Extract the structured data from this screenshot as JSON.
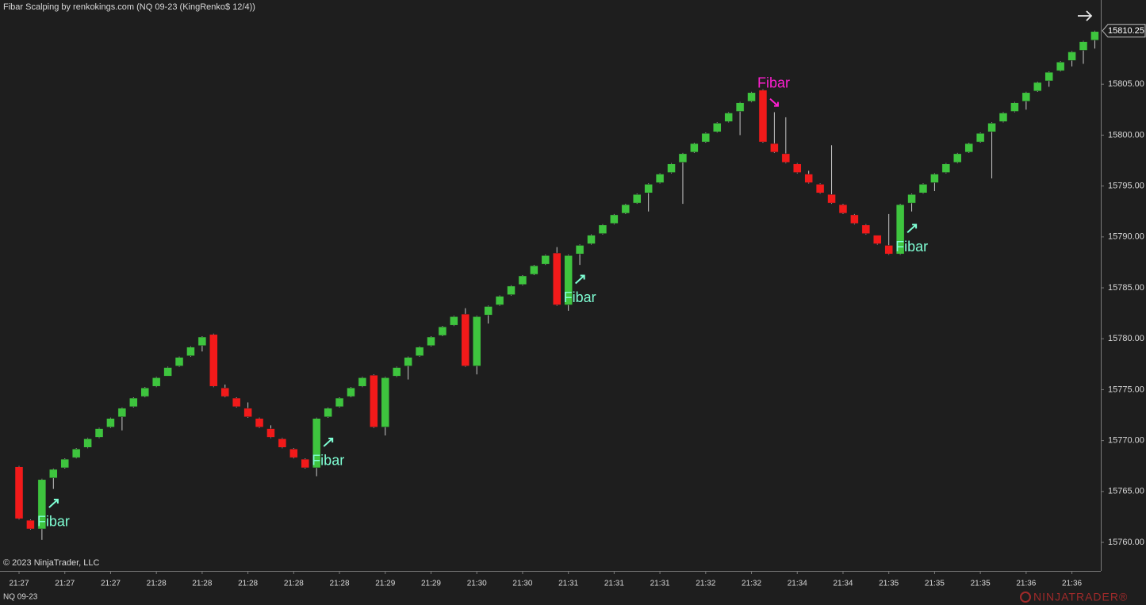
{
  "chart_data": {
    "type": "candlestick",
    "title": "Fibar Scalping by renkokings.com (NQ 09-23 (KingRenko$ 12/4))",
    "copyright": "© 2023 NinjaTrader, LLC",
    "instrument": "NQ 09-23",
    "brand": "NINJATRADER®",
    "up_color": "#3ec43e",
    "down_color": "#f21a1a",
    "categories": [
      "21:27",
      null,
      null,
      null,
      "21:27",
      null,
      null,
      null,
      "21:27",
      null,
      null,
      null,
      "21:28",
      null,
      null,
      null,
      "21:28",
      null,
      null,
      null,
      "21:28",
      null,
      null,
      null,
      "21:28",
      null,
      null,
      null,
      "21:28",
      null,
      null,
      null,
      "21:29",
      null,
      null,
      null,
      "21:29",
      null,
      null,
      null,
      "21:30",
      null,
      null,
      null,
      "21:30",
      null,
      null,
      null,
      "21:31",
      null,
      null,
      null,
      "21:31",
      null,
      null,
      null,
      "21:31",
      null,
      null,
      null,
      "21:32",
      null,
      null,
      null,
      "21:32",
      null,
      null,
      null,
      "21:34",
      null,
      null,
      null,
      "21:34",
      null,
      null,
      null,
      "21:35",
      null,
      null,
      null,
      "21:35",
      null,
      null,
      null,
      "21:35",
      null,
      null,
      null,
      "21:36",
      null,
      null,
      null,
      "21:36",
      null,
      null
    ],
    "open": [
      15767.5,
      15762.25,
      15761.25,
      15766.25,
      15767.25,
      15768.25,
      15769.25,
      15770.25,
      15771.25,
      15772.25,
      15773.25,
      15774.25,
      15775.25,
      15776.25,
      15777.25,
      15778.25,
      15779.25,
      15780.5,
      15775.25,
      15774.25,
      15773.25,
      15772.25,
      15771.25,
      15770.25,
      15769.25,
      15768.25,
      15767.25,
      15772.25,
      15773.25,
      15774.25,
      15775.25,
      15776.5,
      15771.25,
      15776.25,
      15777.25,
      15778.25,
      15779.25,
      15780.25,
      15781.25,
      15782.5,
      15777.25,
      15782.25,
      15783.25,
      15784.25,
      15785.25,
      15786.25,
      15787.25,
      15788.5,
      15783.25,
      15788.25,
      15789.25,
      15790.25,
      15791.25,
      15792.25,
      15793.25,
      15794.25,
      15795.25,
      15796.25,
      15797.25,
      15798.25,
      15799.25,
      15800.25,
      15801.25,
      15802.25,
      15803.25,
      15804.5,
      15799.25,
      15798.25,
      15797.25,
      15796.25,
      15795.25,
      15794.25,
      15793.25,
      15792.25,
      15791.25,
      15790.25,
      15789.25,
      15788.25,
      15793.25,
      15794.25,
      15795.25,
      15796.25,
      15797.25,
      15798.25,
      15799.25,
      15800.25,
      15801.25,
      15802.25,
      15803.25,
      15804.25,
      15805.25,
      15806.25,
      15807.25,
      15808.25,
      15809.25
    ],
    "high": [
      15767.5,
      15762.25,
      15766.25,
      15767.25,
      15768.25,
      15769.25,
      15770.25,
      15771.25,
      15772.25,
      15773.25,
      15774.25,
      15775.25,
      15776.25,
      15777.25,
      15778.25,
      15779.25,
      15780.25,
      15780.5,
      15775.5,
      15774.25,
      15773.75,
      15772.25,
      15771.5,
      15770.25,
      15769.25,
      15768.25,
      15772.25,
      15773.25,
      15774.25,
      15775.25,
      15776.25,
      15776.5,
      15776.25,
      15777.25,
      15778.25,
      15779.25,
      15780.25,
      15781.25,
      15782.25,
      15783,
      15782.25,
      15783.25,
      15784.25,
      15785.25,
      15786.25,
      15787.25,
      15788.25,
      15789,
      15788.25,
      15789.25,
      15790.25,
      15791.25,
      15792.25,
      15793.25,
      15794.25,
      15795.25,
      15796.25,
      15797.25,
      15798.25,
      15799.25,
      15800.25,
      15801.25,
      15802.25,
      15803.25,
      15804.25,
      15804.5,
      15802.25,
      15801.75,
      15797.25,
      15796.5,
      15795.25,
      15799,
      15793.25,
      15792.25,
      15791.25,
      15790,
      15792.25,
      15793.25,
      15794.25,
      15795.25,
      15796.25,
      15797.25,
      15798.25,
      15799.25,
      15800.25,
      15801.25,
      15802.25,
      15803.25,
      15804.25,
      15805.25,
      15806.25,
      15807.25,
      15808.25,
      15809.25,
      15810.25
    ],
    "low": [
      15762.25,
      15761.25,
      15760.25,
      15765.25,
      15767.25,
      15768.25,
      15769.25,
      15770.25,
      15771.25,
      15771,
      15773.25,
      15774.25,
      15775.25,
      15776.5,
      15777.25,
      15778.25,
      15778.75,
      15775.25,
      15774.25,
      15773.25,
      15772.25,
      15771.25,
      15770.25,
      15769.25,
      15768.25,
      15767.25,
      15766.5,
      15772.25,
      15773.25,
      15774.25,
      15775.25,
      15771.25,
      15770.5,
      15776.25,
      15776,
      15778.25,
      15779.25,
      15780.25,
      15781.25,
      15777.25,
      15776.5,
      15781.5,
      15783.25,
      15784.25,
      15785.25,
      15786.25,
      15787.25,
      15783.25,
      15782.75,
      15787.25,
      15789.25,
      15790.25,
      15791.25,
      15792.25,
      15793.25,
      15792.5,
      15795.25,
      15796.25,
      15793.25,
      15798.25,
      15799.25,
      15800.25,
      15801.25,
      15800,
      15803.25,
      15799.25,
      15798.25,
      15797.25,
      15796.25,
      15795.25,
      15794.25,
      15793.25,
      15792.25,
      15791.25,
      15790.25,
      15789.25,
      15788.25,
      15788.25,
      15792.5,
      15794.25,
      15794.5,
      15796.25,
      15797.25,
      15798.25,
      15799.25,
      15795.75,
      15801.25,
      15802.25,
      15802.5,
      15804.25,
      15804.75,
      15806.25,
      15806.75,
      15807,
      15808.5
    ],
    "close": [
      15762.25,
      15761.25,
      15766.25,
      15767.25,
      15768.25,
      15769.25,
      15770.25,
      15771.25,
      15772.25,
      15773.25,
      15774.25,
      15775.25,
      15776.25,
      15777.25,
      15778.25,
      15779.25,
      15780.25,
      15775.25,
      15774.25,
      15773.25,
      15772.25,
      15771.25,
      15770.25,
      15769.25,
      15768.25,
      15767.25,
      15772.25,
      15773.25,
      15774.25,
      15775.25,
      15776.25,
      15771.25,
      15776.25,
      15777.25,
      15778.25,
      15779.25,
      15780.25,
      15781.25,
      15782.25,
      15777.25,
      15782.25,
      15783.25,
      15784.25,
      15785.25,
      15786.25,
      15787.25,
      15788.25,
      15783.25,
      15788.25,
      15789.25,
      15790.25,
      15791.25,
      15792.25,
      15793.25,
      15794.25,
      15795.25,
      15796.25,
      15797.25,
      15798.25,
      15799.25,
      15800.25,
      15801.25,
      15802.25,
      15803.25,
      15804.25,
      15799.25,
      15798.25,
      15797.25,
      15796.25,
      15795.25,
      15794.25,
      15793.25,
      15792.25,
      15791.25,
      15790.25,
      15789.25,
      15788.25,
      15793.25,
      15794.25,
      15795.25,
      15796.25,
      15797.25,
      15798.25,
      15799.25,
      15800.25,
      15801.25,
      15802.25,
      15803.25,
      15804.25,
      15805.25,
      15806.25,
      15807.25,
      15808.25,
      15809.25,
      15810.25
    ],
    "ylim": [
      15757.2,
      15813.27
    ],
    "yticks": [
      {
        "value": 15760,
        "label": "15760.00"
      },
      {
        "value": 15765,
        "label": "15765.00"
      },
      {
        "value": 15770,
        "label": "15770.00"
      },
      {
        "value": 15775,
        "label": "15775.00"
      },
      {
        "value": 15780,
        "label": "15780.00"
      },
      {
        "value": 15785,
        "label": "15785.00"
      },
      {
        "value": 15790,
        "label": "15790.00"
      },
      {
        "value": 15795,
        "label": "15795.00"
      },
      {
        "value": 15800,
        "label": "15800.00"
      },
      {
        "value": 15805,
        "label": "15805.00"
      }
    ],
    "last_price": 15810.25,
    "annotations": [
      {
        "text": "Fibar",
        "index": 2,
        "color": "#7fffd4"
      },
      {
        "text": "Fibar",
        "index": 26,
        "color": "#7fffd4"
      },
      {
        "text": "Fibar",
        "index": 48,
        "color": "#7fffd4"
      },
      {
        "text": "Fibar",
        "index": 65,
        "color": "#ff1fd2"
      },
      {
        "text": "Fibar",
        "index": 77,
        "color": "#7fffd4"
      }
    ]
  }
}
